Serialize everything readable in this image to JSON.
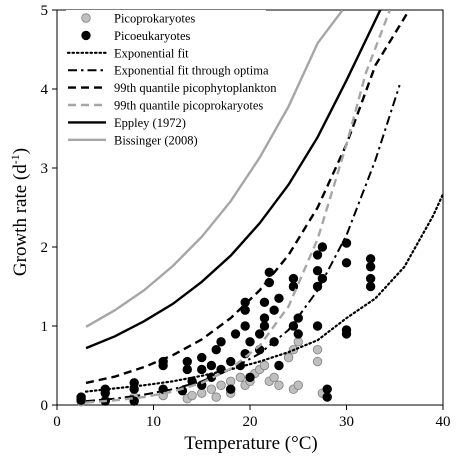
{
  "chart_data": {
    "type": "scatter",
    "xlabel": "Temperature (°C)",
    "ylabel_main": "Growth rate (d",
    "ylabel_sup": "-1",
    "ylabel_close": ")",
    "xlim": [
      0,
      40
    ],
    "ylim": [
      0,
      5
    ],
    "x_ticks": [
      "0",
      "10",
      "20",
      "30",
      "40"
    ],
    "y_ticks": [
      "0",
      "1",
      "2",
      "3",
      "4",
      "5"
    ],
    "grid": false,
    "legend_position": "top-left",
    "scatter_series": [
      {
        "name": "Picoprokaryotes",
        "marker": "circle",
        "fill": "#bfbfbf",
        "stroke": "#808080",
        "points": [
          [
            2.5,
            0.04
          ],
          [
            2.5,
            0.08
          ],
          [
            5.0,
            0.06
          ],
          [
            8.0,
            0.1
          ],
          [
            11.0,
            0.12
          ],
          [
            13.5,
            0.08
          ],
          [
            14.0,
            0.12
          ],
          [
            15.0,
            0.15
          ],
          [
            16.0,
            0.2
          ],
          [
            16.5,
            0.1
          ],
          [
            17.0,
            0.25
          ],
          [
            18.0,
            0.3
          ],
          [
            18.0,
            0.15
          ],
          [
            19.0,
            0.35
          ],
          [
            19.5,
            0.25
          ],
          [
            20.0,
            0.3
          ],
          [
            20.5,
            0.4
          ],
          [
            21.0,
            0.45
          ],
          [
            21.5,
            0.5
          ],
          [
            22.0,
            0.3
          ],
          [
            22.5,
            0.35
          ],
          [
            23.0,
            0.25
          ],
          [
            24.0,
            0.6
          ],
          [
            24.5,
            0.7
          ],
          [
            24.5,
            0.2
          ],
          [
            25.0,
            0.8
          ],
          [
            25.0,
            0.25
          ],
          [
            27.0,
            0.55
          ],
          [
            27.0,
            0.7
          ],
          [
            27.5,
            0.15
          ]
        ]
      },
      {
        "name": "Picoeukaryotes",
        "marker": "circle",
        "fill": "#000000",
        "stroke": "#000000",
        "points": [
          [
            2.5,
            0.06
          ],
          [
            2.5,
            0.1
          ],
          [
            5.0,
            0.05
          ],
          [
            5.0,
            0.15
          ],
          [
            5.0,
            0.2
          ],
          [
            8.0,
            0.2
          ],
          [
            8.0,
            0.28
          ],
          [
            8.0,
            0.05
          ],
          [
            11.0,
            0.2
          ],
          [
            11.0,
            0.5
          ],
          [
            11.0,
            0.55
          ],
          [
            13.0,
            0.18
          ],
          [
            13.5,
            0.45
          ],
          [
            13.5,
            0.55
          ],
          [
            14.0,
            0.3
          ],
          [
            15.0,
            0.25
          ],
          [
            15.0,
            0.45
          ],
          [
            15.0,
            0.6
          ],
          [
            16.0,
            0.35
          ],
          [
            16.0,
            0.5
          ],
          [
            16.5,
            0.7
          ],
          [
            17.0,
            0.8
          ],
          [
            17.0,
            0.45
          ],
          [
            18.0,
            0.2
          ],
          [
            18.0,
            0.55
          ],
          [
            18.5,
            0.9
          ],
          [
            19.0,
            0.5
          ],
          [
            19.5,
            0.65
          ],
          [
            19.5,
            1.0
          ],
          [
            19.5,
            1.2
          ],
          [
            19.5,
            1.3
          ],
          [
            20.0,
            0.8
          ],
          [
            20.0,
            0.35
          ],
          [
            21.0,
            0.7
          ],
          [
            21.0,
            0.9
          ],
          [
            21.5,
            1.0
          ],
          [
            21.5,
            1.1
          ],
          [
            21.5,
            1.3
          ],
          [
            22.0,
            1.55
          ],
          [
            22.0,
            1.68
          ],
          [
            22.5,
            0.8
          ],
          [
            22.5,
            1.2
          ],
          [
            23.0,
            0.5
          ],
          [
            23.0,
            1.35
          ],
          [
            24.5,
            1.5
          ],
          [
            24.5,
            1.6
          ],
          [
            24.5,
            1.0
          ],
          [
            25.0,
            1.1
          ],
          [
            25.0,
            0.9
          ],
          [
            27.0,
            1.0
          ],
          [
            27.0,
            1.5
          ],
          [
            27.0,
            1.7
          ],
          [
            27.0,
            1.9
          ],
          [
            27.5,
            2.0
          ],
          [
            27.5,
            1.6
          ],
          [
            28.0,
            0.1
          ],
          [
            28.0,
            0.2
          ],
          [
            30.0,
            0.9
          ],
          [
            30.0,
            0.95
          ],
          [
            30.0,
            1.8
          ],
          [
            30.0,
            2.05
          ],
          [
            32.5,
            1.5
          ],
          [
            32.5,
            1.6
          ],
          [
            32.5,
            1.75
          ],
          [
            32.5,
            1.85
          ]
        ]
      }
    ],
    "line_series": [
      {
        "name": "Exponential fit",
        "style": "dotted",
        "color": "#000000",
        "width": 2.2,
        "x": [
          3,
          6,
          9,
          12,
          15,
          18,
          21,
          24,
          27,
          30,
          33,
          36,
          39,
          40
        ],
        "y": [
          0.17,
          0.21,
          0.25,
          0.3,
          0.37,
          0.45,
          0.55,
          0.67,
          0.82,
          1.1,
          1.35,
          1.75,
          2.4,
          2.67
        ]
      },
      {
        "name": "Exponential fit through optima",
        "style": "dashdot",
        "color": "#000000",
        "width": 2.0,
        "x": [
          3,
          6,
          9,
          12,
          15,
          18,
          21,
          24,
          27,
          30,
          33,
          35.5
        ],
        "y": [
          0.05,
          0.08,
          0.13,
          0.2,
          0.3,
          0.45,
          0.65,
          0.95,
          1.45,
          2.15,
          3.1,
          4.05
        ]
      },
      {
        "name": "99th quantile picophytoplankton",
        "style": "dashed",
        "color": "#000000",
        "width": 2.4,
        "x": [
          3,
          6,
          9,
          12,
          15,
          18,
          21,
          24,
          27,
          30,
          33,
          36.5
        ],
        "y": [
          0.28,
          0.36,
          0.48,
          0.63,
          0.83,
          1.1,
          1.45,
          1.9,
          2.5,
          3.3,
          4.3,
          5.0
        ]
      },
      {
        "name": "99th quantile picoprokaryotes",
        "style": "dashed",
        "color": "#a6a6a6",
        "width": 2.4,
        "x": [
          3,
          6,
          9,
          12,
          15,
          18,
          21,
          24,
          27,
          30,
          32,
          34.5
        ],
        "y": [
          0.03,
          0.06,
          0.1,
          0.17,
          0.28,
          0.46,
          0.75,
          1.25,
          2.1,
          3.3,
          4.2,
          5.0
        ]
      },
      {
        "name": "Eppley (1972)",
        "style": "solid",
        "color": "#000000",
        "width": 2.4,
        "x": [
          3,
          6,
          9,
          12,
          15,
          18,
          21,
          24,
          27,
          30,
          33.5
        ],
        "y": [
          0.72,
          0.87,
          1.06,
          1.28,
          1.56,
          1.89,
          2.3,
          2.79,
          3.39,
          4.11,
          5.0
        ]
      },
      {
        "name": "Bissinger (2008)",
        "style": "solid",
        "color": "#a6a6a6",
        "width": 2.4,
        "x": [
          3,
          6,
          9,
          12,
          15,
          18,
          21,
          24,
          27,
          29.6
        ],
        "y": [
          0.99,
          1.2,
          1.45,
          1.76,
          2.13,
          2.58,
          3.13,
          3.78,
          4.58,
          5.0
        ]
      }
    ]
  }
}
